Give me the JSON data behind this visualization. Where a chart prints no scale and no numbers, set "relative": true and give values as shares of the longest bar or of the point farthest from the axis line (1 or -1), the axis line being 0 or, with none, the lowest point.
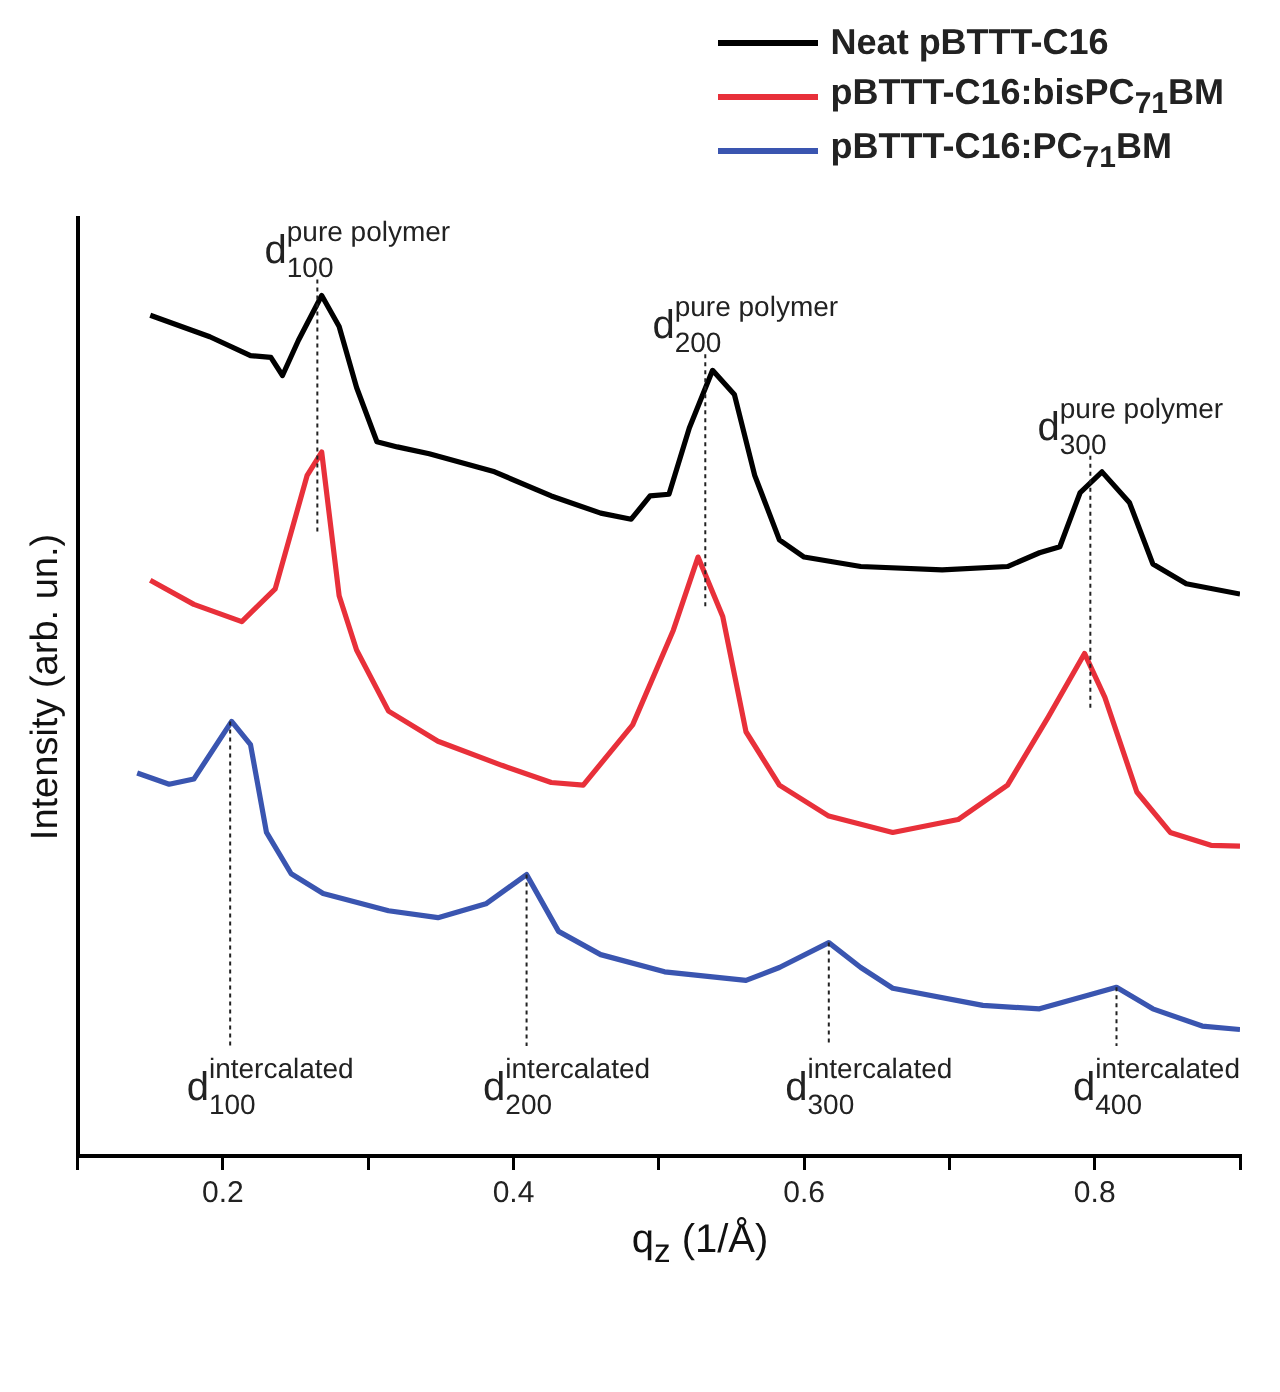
{
  "chart_data": {
    "type": "line",
    "relative": true,
    "xlabel": "q$_{z}$ (1/Å)",
    "ylabel": "Intensity (arb. un.)",
    "legend": "top right",
    "grid": false,
    "marker": "none",
    "line_style": "solid",
    "xlim": [
      0.1,
      0.9
    ],
    "xticks": [
      {
        "value": 0.1,
        "label": null
      },
      0.2,
      {
        "value": 0.3,
        "label": null
      },
      0.4,
      {
        "value": 0.5,
        "label": null
      },
      0.6,
      {
        "value": 0.7,
        "label": null
      },
      0.8,
      {
        "value": 0.9,
        "label": null
      }
    ],
    "series": [
      {
        "name": "Neat pBTTT-C16",
        "color": "#000000",
        "x": [
          0.15,
          0.191,
          0.219,
          0.233,
          0.241,
          0.252,
          0.268,
          0.28,
          0.292,
          0.306,
          0.32,
          0.342,
          0.387,
          0.426,
          0.46,
          0.481,
          0.494,
          0.507,
          0.521,
          0.537,
          0.552,
          0.566,
          0.583,
          0.6,
          0.639,
          0.695,
          0.74,
          0.762,
          0.776,
          0.79,
          0.805,
          0.824,
          0.84,
          0.863,
          0.9
        ],
        "values": [
          0.977,
          0.952,
          0.93,
          0.928,
          0.907,
          0.948,
          1.0,
          0.964,
          0.893,
          0.83,
          0.824,
          0.816,
          0.795,
          0.767,
          0.747,
          0.74,
          0.767,
          0.769,
          0.846,
          0.913,
          0.885,
          0.791,
          0.716,
          0.696,
          0.685,
          0.681,
          0.685,
          0.701,
          0.708,
          0.771,
          0.795,
          0.759,
          0.688,
          0.665,
          0.653
        ]
      },
      {
        "name": "pBTTT-C16:bisPC$_{71}$BM",
        "color": "#e8303a",
        "x": [
          0.15,
          0.18,
          0.213,
          0.236,
          0.258,
          0.268,
          0.28,
          0.292,
          0.314,
          0.348,
          0.392,
          0.426,
          0.448,
          0.482,
          0.51,
          0.527,
          0.544,
          0.56,
          0.583,
          0.617,
          0.661,
          0.706,
          0.74,
          0.768,
          0.793,
          0.807,
          0.829,
          0.852,
          0.88,
          0.9
        ],
        "values": [
          0.669,
          0.641,
          0.621,
          0.659,
          0.791,
          0.818,
          0.651,
          0.588,
          0.517,
          0.482,
          0.454,
          0.434,
          0.431,
          0.501,
          0.611,
          0.696,
          0.627,
          0.493,
          0.431,
          0.395,
          0.376,
          0.391,
          0.431,
          0.51,
          0.584,
          0.533,
          0.423,
          0.376,
          0.361,
          0.36
        ]
      },
      {
        "name": "pBTTT-C16:PC$_{71}$BM",
        "color": "#3a55b0",
        "x": [
          0.141,
          0.163,
          0.18,
          0.206,
          0.219,
          0.23,
          0.247,
          0.269,
          0.314,
          0.348,
          0.381,
          0.409,
          0.431,
          0.46,
          0.504,
          0.56,
          0.583,
          0.617,
          0.639,
          0.661,
          0.723,
          0.762,
          0.796,
          0.815,
          0.84,
          0.874,
          0.9
        ],
        "values": [
          0.445,
          0.432,
          0.438,
          0.505,
          0.478,
          0.376,
          0.328,
          0.305,
          0.285,
          0.277,
          0.293,
          0.327,
          0.261,
          0.234,
          0.214,
          0.204,
          0.219,
          0.248,
          0.219,
          0.195,
          0.175,
          0.171,
          0.187,
          0.196,
          0.171,
          0.151,
          0.147
        ]
      }
    ],
    "annotations": [
      {
        "text": "d$^{pure polymer}$$_{100}$",
        "x": 0.265,
        "y": 1.0
      },
      {
        "text": "d$^{pure polymer}$$_{200}$",
        "x": 0.532,
        "y": 0.913
      },
      {
        "text": "d$^{pure polymer}$$_{300}$",
        "x": 0.797,
        "y": 0.795
      },
      {
        "text": "d$^{intercalated}$$_{100}$",
        "x": 0.205,
        "y": 0.505
      },
      {
        "text": "d$^{intercalated}$$_{200}$",
        "x": 0.409,
        "y": 0.327
      },
      {
        "text": "d$^{intercalated}$$_{300}$",
        "x": 0.617,
        "y": 0.248
      },
      {
        "text": "d$^{intercalated}$$_{400}$",
        "x": 0.815,
        "y": 0.196
      }
    ]
  }
}
